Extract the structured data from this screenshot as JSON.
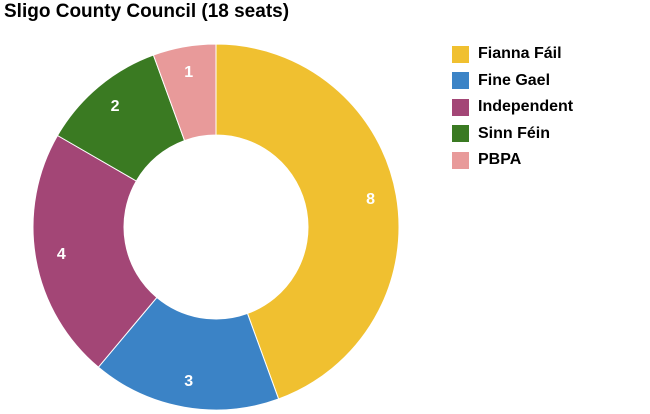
{
  "chart_data": {
    "type": "pie",
    "variant": "donut",
    "title": "Sligo County Council (18 seats)",
    "start_angle_deg": 0,
    "direction": "clockwise",
    "legend_position": "right",
    "slices": [
      {
        "name": "Fianna Fáil",
        "value": 8,
        "color": "#f0c030"
      },
      {
        "name": "Fine Gael",
        "value": 3,
        "color": "#3b83c6"
      },
      {
        "name": "Independent",
        "value": 4,
        "color": "#a34676"
      },
      {
        "name": "Sinn Féin",
        "value": 2,
        "color": "#3a7a22"
      },
      {
        "name": "PBPA",
        "value": 1,
        "color": "#e89a9a"
      }
    ]
  }
}
